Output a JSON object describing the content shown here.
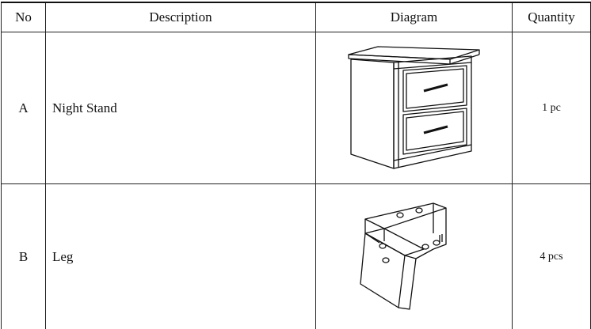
{
  "table": {
    "header": [
      "No",
      "Description",
      "Diagram",
      "Quantity"
    ],
    "rows": [
      {
        "no": "A",
        "description": "Night Stand",
        "quantity": "1 pc"
      },
      {
        "no": "B",
        "description": "Leg",
        "quantity": "4 pcs"
      }
    ]
  }
}
